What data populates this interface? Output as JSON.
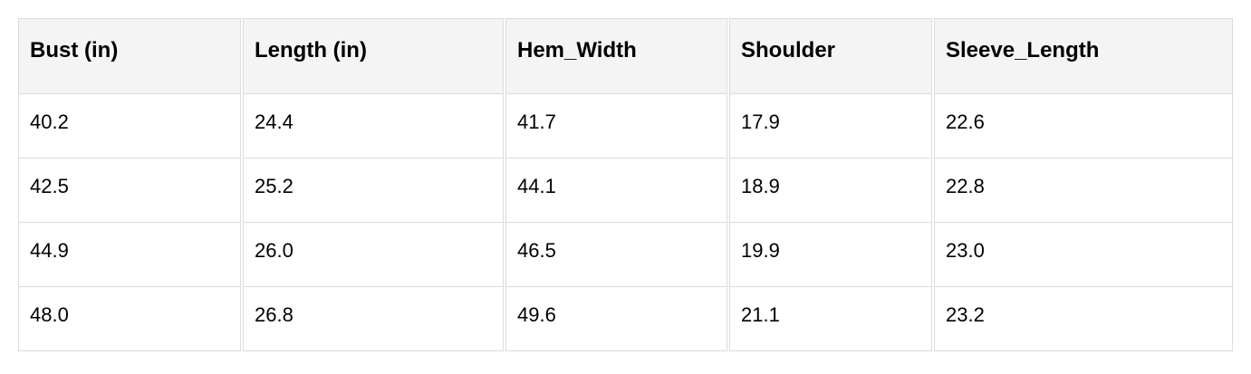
{
  "table": {
    "headers": [
      "Bust (in)",
      "Length (in)",
      "Hem_Width",
      "Shoulder",
      "Sleeve_Length"
    ],
    "rows": [
      [
        "40.2",
        "24.4",
        "41.7",
        "17.9",
        "22.6"
      ],
      [
        "42.5",
        "25.2",
        "44.1",
        "18.9",
        "22.8"
      ],
      [
        "44.9",
        "26.0",
        "46.5",
        "19.9",
        "23.0"
      ],
      [
        "48.0",
        "26.8",
        "49.6",
        "21.1",
        "23.2"
      ]
    ]
  }
}
